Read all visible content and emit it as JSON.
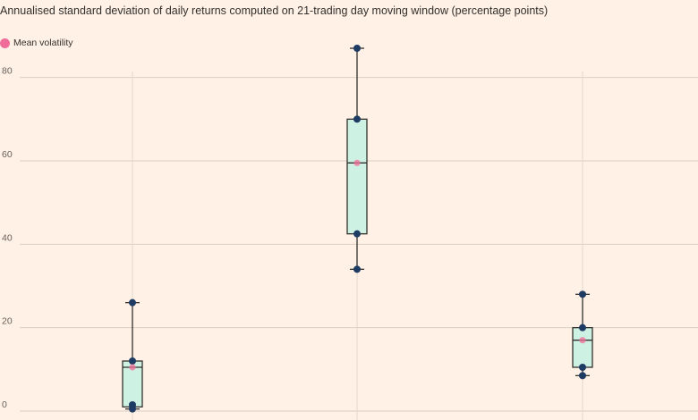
{
  "chart_data": {
    "type": "boxplot",
    "subtitle": "Annualised standard deviation of daily returns computed on 21-trading day moving window (percentage points)",
    "legend": [
      {
        "name": "Mean volatility",
        "color": "#f06d9a"
      }
    ],
    "y_ticks": [
      "0",
      "20",
      "40",
      "60",
      "80"
    ],
    "ylim": [
      0,
      90
    ],
    "grid": true,
    "colors": {
      "box_fill": "#cdf1e3",
      "box_stroke": "#33302e",
      "point": "#1d3b63",
      "mean": "#f06d9a",
      "whisker": "#33302e"
    },
    "boxes": [
      {
        "min": 0.5,
        "q1": 1,
        "median": 10.5,
        "q3": 12,
        "max": 26,
        "mean": 10.5,
        "points": [
          26,
          12,
          1.5,
          0.5
        ]
      },
      {
        "min": 34,
        "q1": 42.5,
        "median": 59.5,
        "q3": 70,
        "max": 87,
        "mean": 59.5,
        "points": [
          87,
          70,
          42.5,
          34
        ]
      },
      {
        "min": 8.5,
        "q1": 10.5,
        "median": 17,
        "q3": 20,
        "max": 28,
        "mean": 17,
        "points": [
          28,
          20,
          10.5,
          8.5
        ]
      }
    ]
  }
}
